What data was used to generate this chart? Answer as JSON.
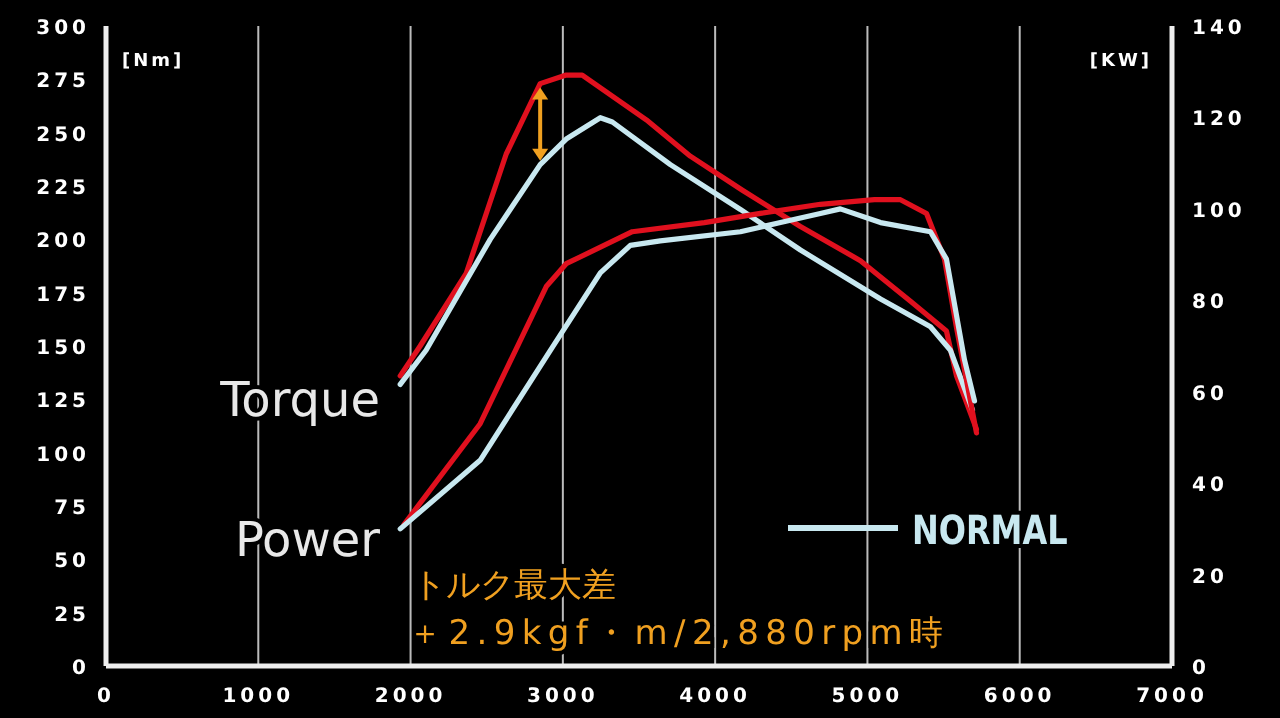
{
  "chart_data": {
    "type": "line",
    "xlabel": null,
    "ylabel": "[Nm]",
    "y2label": "[KW]",
    "xlim": [
      0,
      7000
    ],
    "xticks": [
      0,
      1000,
      2000,
      3000,
      4000,
      5000,
      6000,
      7000
    ],
    "ylim": [
      0,
      300
    ],
    "yticks": [
      0,
      25,
      50,
      75,
      100,
      125,
      150,
      175,
      200,
      225,
      250,
      275,
      300
    ],
    "y2lim": [
      0,
      140
    ],
    "y2ticks": [
      0,
      20,
      40,
      60,
      80,
      100,
      120,
      140
    ],
    "grid": "x",
    "legend": "bottom right",
    "marker": "none",
    "line_style": "solid",
    "annotations": [
      "Torque",
      "Power",
      "トルク最大差",
      "＋2.9kgf・m/2,880rpm時"
    ],
    "series": [
      {
        "color": "#e0101e",
        "x": [
          1932,
          2063,
          2365,
          2628,
          2851,
          3022,
          3127,
          3548,
          3837,
          4179,
          4560,
          4954,
          5283,
          5519,
          5585,
          5716
        ],
        "values": [
          136,
          150,
          184,
          240,
          273,
          277,
          277,
          256,
          239,
          223,
          206,
          190,
          171,
          157,
          136,
          111
        ]
      },
      {
        "name": "NORMAL",
        "color": "#c8e8f0",
        "x": [
          1932,
          2102,
          2523,
          2851,
          3022,
          3246,
          3325,
          3706,
          4166,
          4560,
          5086,
          5414,
          5545,
          5690
        ],
        "values": [
          132,
          148,
          200,
          235,
          247,
          257,
          255,
          235,
          214,
          195,
          172,
          159,
          148,
          120
        ]
      },
      {
        "color": "#e0101e",
        "axis": "y2",
        "x": [
          1958,
          2457,
          2891,
          3022,
          3456,
          3929,
          4297,
          4691,
          5046,
          5217,
          5388,
          5506,
          5585,
          5716
        ],
        "values": [
          31,
          53,
          83,
          88,
          95,
          97,
          99,
          101,
          102,
          102,
          99,
          89,
          74,
          51
        ]
      },
      {
        "color": "#c8e8f0",
        "axis": "y2",
        "x": [
          1932,
          2457,
          2917,
          3246,
          3443,
          3640,
          4166,
          4429,
          4691,
          4822,
          5086,
          5414,
          5519,
          5637,
          5703
        ],
        "values": [
          30,
          45,
          69,
          86,
          92,
          93,
          95,
          97,
          99,
          100,
          97,
          95,
          89,
          67,
          58
        ]
      }
    ]
  }
}
